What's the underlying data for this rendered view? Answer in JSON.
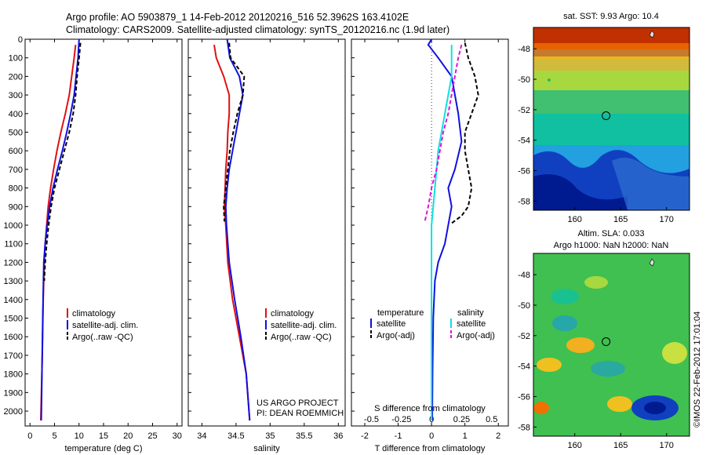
{
  "header": {
    "title_line1": "Argo profile: AO 5903879_1 14-Feb-2012 20120216_516 52.3962S 163.4102E",
    "title_line2": "Climatology: CARS2009. Satellite-adjusted climatology: synTS_20120216.nc (1.9d later)"
  },
  "colors": {
    "climatology": "#e01010",
    "satellite": "#1010e0",
    "argo": "#000000",
    "sat_salinity": "#10e0e0",
    "argo_adj_salinity": "#e010e0"
  },
  "chart_data": [
    {
      "id": "temperature",
      "type": "line",
      "xlabel": "temperature (deg C)",
      "ylabel": "",
      "xlim": [
        -1,
        31
      ],
      "ylim": [
        2080,
        0
      ],
      "xticks": [
        0,
        5,
        10,
        15,
        20,
        25,
        30
      ],
      "yticks": [
        0,
        100,
        200,
        300,
        400,
        500,
        600,
        700,
        800,
        900,
        1000,
        1100,
        1200,
        1300,
        1400,
        1500,
        1600,
        1700,
        1800,
        1900,
        2000
      ],
      "legend": [
        "climatology",
        "satellite-adj. clim.",
        "Argo(..raw -QC)"
      ],
      "series": [
        {
          "name": "climatology",
          "style": "solid",
          "color": "#e01010",
          "x": [
            9.3,
            9.0,
            8.5,
            8.0,
            7.2,
            6.3,
            5.5,
            4.8,
            4.2,
            3.7,
            3.4,
            3.1,
            2.9,
            2.7,
            2.5,
            2.2
          ],
          "y": [
            30,
            100,
            200,
            300,
            400,
            500,
            600,
            700,
            800,
            900,
            1000,
            1100,
            1200,
            1400,
            1700,
            2050
          ]
        },
        {
          "name": "satellite-adj. clim.",
          "style": "solid",
          "color": "#1010e0",
          "x": [
            10.0,
            9.8,
            9.4,
            9.0,
            8.3,
            7.5,
            6.6,
            5.6,
            4.7,
            4.0,
            3.5,
            3.1,
            2.8,
            2.6,
            2.3
          ],
          "y": [
            0,
            100,
            200,
            300,
            400,
            500,
            600,
            700,
            800,
            900,
            1000,
            1100,
            1200,
            1500,
            2050
          ]
        },
        {
          "name": "Argo(..raw -QC)",
          "style": "dashed",
          "color": "#000000",
          "x": [
            10.3,
            10.0,
            9.6,
            9.3,
            8.8,
            8.0,
            7.0,
            6.0,
            5.0,
            4.3,
            3.8,
            3.4,
            3.1,
            2.9
          ],
          "y": [
            20,
            100,
            200,
            300,
            400,
            500,
            600,
            700,
            800,
            900,
            1000,
            1100,
            1200,
            1300
          ]
        }
      ]
    },
    {
      "id": "salinity",
      "type": "line",
      "xlabel": "salinity",
      "ylabel": "",
      "xlim": [
        33.8,
        36.1
      ],
      "ylim": [
        2080,
        0
      ],
      "xticks": [
        34,
        34.5,
        35,
        35.5,
        36
      ],
      "legend": [
        "climatology",
        "satellite-adj. clim.",
        "Argo(..raw -QC)"
      ],
      "series": [
        {
          "name": "climatology",
          "style": "solid",
          "color": "#e01010",
          "x": [
            34.18,
            34.21,
            34.32,
            34.4,
            34.4,
            34.38,
            34.37,
            34.35,
            34.34,
            34.33,
            34.35,
            34.38,
            34.45,
            34.55,
            34.65,
            34.7
          ],
          "y": [
            30,
            100,
            200,
            300,
            400,
            500,
            600,
            700,
            800,
            900,
            1000,
            1200,
            1400,
            1600,
            1800,
            2050
          ]
        },
        {
          "name": "satellite-adj. clim.",
          "style": "solid",
          "color": "#1010e0",
          "x": [
            34.37,
            34.41,
            34.55,
            34.6,
            34.55,
            34.5,
            34.45,
            34.4,
            34.37,
            34.35,
            34.36,
            34.4,
            34.48,
            34.57,
            34.65,
            34.7
          ],
          "y": [
            0,
            100,
            200,
            300,
            400,
            500,
            600,
            700,
            800,
            900,
            1000,
            1200,
            1400,
            1600,
            1800,
            2050
          ]
        },
        {
          "name": "Argo(..raw -QC)",
          "style": "dashed",
          "color": "#000000",
          "x": [
            34.4,
            34.42,
            34.62,
            34.6,
            34.52,
            34.46,
            34.41,
            34.38,
            34.35,
            34.32,
            34.33
          ],
          "y": [
            20,
            100,
            200,
            300,
            400,
            500,
            600,
            700,
            800,
            900,
            980
          ]
        }
      ],
      "annotation": [
        "US ARGO PROJECT",
        "PI: DEAN ROEMMICH"
      ]
    },
    {
      "id": "difference",
      "type": "line",
      "xlabel": "T difference from climatology",
      "xlabel_top": "S difference from climatology",
      "xlim": [
        -2.4,
        2.3
      ],
      "ylim": [
        2080,
        0
      ],
      "xticks": [
        -2,
        -1,
        0,
        1,
        2
      ],
      "xtick_labels_top": [
        "-0.5",
        "-0.25",
        "0",
        "0.25",
        "0.5"
      ],
      "legend": {
        "temperature": [
          "satellite",
          "Argo(-adj)"
        ],
        "salinity": [
          "satellite",
          "Argo(-adj)"
        ]
      },
      "legend_titles": [
        "temperature",
        "salinity"
      ],
      "series": [
        {
          "name": "temperature satellite",
          "style": "solid",
          "color": "#1010e0",
          "x": [
            0.0,
            -0.1,
            0.2,
            0.6,
            0.8,
            0.9,
            0.7,
            0.5,
            0.6,
            0.5,
            0.4,
            0.2,
            0.1,
            0.05,
            0.03,
            0.02
          ],
          "y": [
            0,
            30,
            100,
            200,
            400,
            550,
            700,
            800,
            900,
            1000,
            1100,
            1200,
            1300,
            1500,
            1800,
            2050
          ]
        },
        {
          "name": "temperature Argo(-adj)",
          "style": "dashed",
          "color": "#000000",
          "x": [
            1.0,
            1.1,
            1.3,
            1.4,
            1.2,
            1.0,
            1.0,
            1.1,
            1.2,
            1.1,
            0.9,
            0.6
          ],
          "y": [
            20,
            100,
            200,
            300,
            400,
            500,
            600,
            700,
            800,
            900,
            950,
            990
          ]
        },
        {
          "name": "salinity satellite",
          "style": "solid",
          "color": "#10e0e0",
          "x": [
            0.6,
            0.6,
            0.6,
            0.5,
            0.4,
            0.3,
            0.2,
            0.15,
            0.1,
            0.05,
            0.0,
            0.0,
            0.0
          ],
          "y": [
            30,
            100,
            200,
            300,
            400,
            500,
            600,
            700,
            800,
            900,
            1000,
            1200,
            2050
          ]
        },
        {
          "name": "salinity Argo(-adj)",
          "style": "dashed",
          "color": "#e010e0",
          "x": [
            0.9,
            0.8,
            0.7,
            0.5,
            0.35,
            0.25,
            0.15,
            0.0,
            -0.1,
            -0.2
          ],
          "y": [
            30,
            100,
            200,
            400,
            500,
            600,
            700,
            800,
            900,
            980
          ]
        }
      ]
    },
    {
      "id": "sst_map",
      "type": "heatmap",
      "title": "sat. SST: 9.93 Argo: 10.4",
      "xlim": [
        155.5,
        172.5
      ],
      "ylim": [
        -58.6,
        -46.6
      ],
      "xticks": [
        160,
        165,
        170
      ],
      "yticks": [
        -48,
        -50,
        -52,
        -54,
        -56,
        -58
      ],
      "marker": {
        "lon": 163.4102,
        "lat": -52.3962
      }
    },
    {
      "id": "sla_map",
      "type": "heatmap",
      "title": "Altim. SLA: 0.033",
      "subtitle": "Argo h1000: NaN h2000: NaN",
      "xlim": [
        155.5,
        172.5
      ],
      "ylim": [
        -58.6,
        -46.6
      ],
      "xticks": [
        160,
        165,
        170
      ],
      "yticks": [
        -48,
        -50,
        -52,
        -54,
        -56,
        -58
      ],
      "marker": {
        "lon": 163.4102,
        "lat": -52.3962
      }
    }
  ],
  "side_stamp": "©IMOS 22-Feb-2012 17:01:04"
}
